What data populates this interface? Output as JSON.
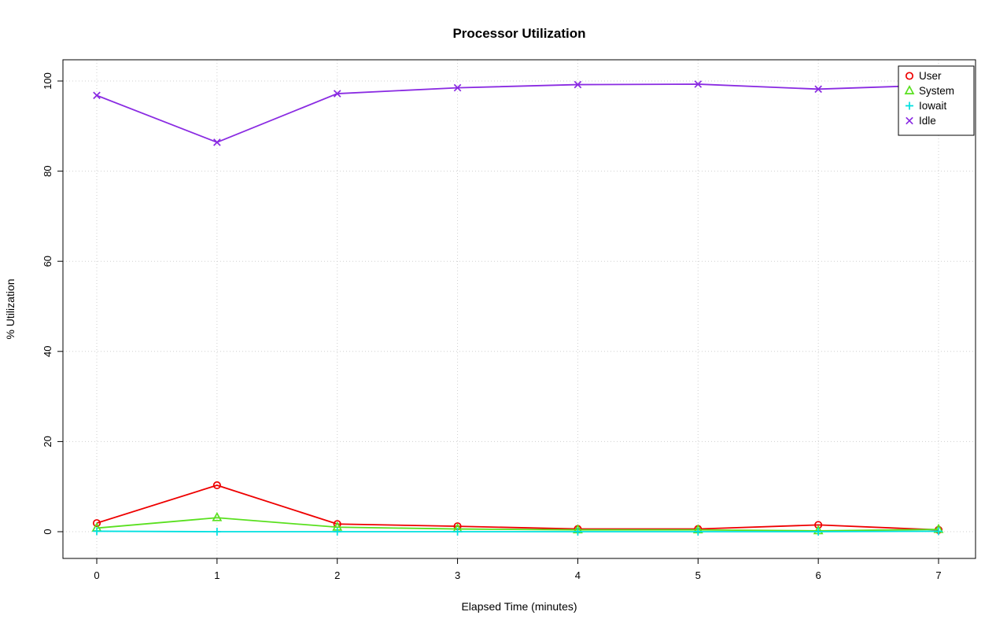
{
  "chart_data": {
    "type": "line",
    "title": "Processor Utilization",
    "xlabel": "Elapsed Time (minutes)",
    "ylabel": "% Utilization",
    "x": [
      0,
      1,
      2,
      3,
      4,
      5,
      6,
      7
    ],
    "x_ticks": [
      0,
      1,
      2,
      3,
      4,
      5,
      6,
      7
    ],
    "y_ticks": [
      0,
      20,
      40,
      60,
      80,
      100
    ],
    "xlim": [
      0,
      7
    ],
    "ylim": [
      0,
      100
    ],
    "grid": true,
    "legend_position": "top-right",
    "series": [
      {
        "name": "User",
        "color": "#ee0000",
        "marker": "circle",
        "values": [
          1.9,
          10.3,
          1.7,
          1.2,
          0.6,
          0.6,
          1.5,
          0.4
        ]
      },
      {
        "name": "System",
        "color": "#59e01f",
        "marker": "triangle",
        "values": [
          0.8,
          3.1,
          1.0,
          0.6,
          0.4,
          0.4,
          0.2,
          0.5
        ]
      },
      {
        "name": "Iowait",
        "color": "#00e0e0",
        "marker": "plus",
        "values": [
          0.1,
          0.0,
          0.0,
          0.0,
          0.0,
          0.0,
          0.0,
          0.1
        ]
      },
      {
        "name": "Idle",
        "color": "#8a2be2",
        "marker": "x",
        "values": [
          96.8,
          86.4,
          97.2,
          98.5,
          99.2,
          99.3,
          98.2,
          99.1
        ]
      }
    ]
  }
}
